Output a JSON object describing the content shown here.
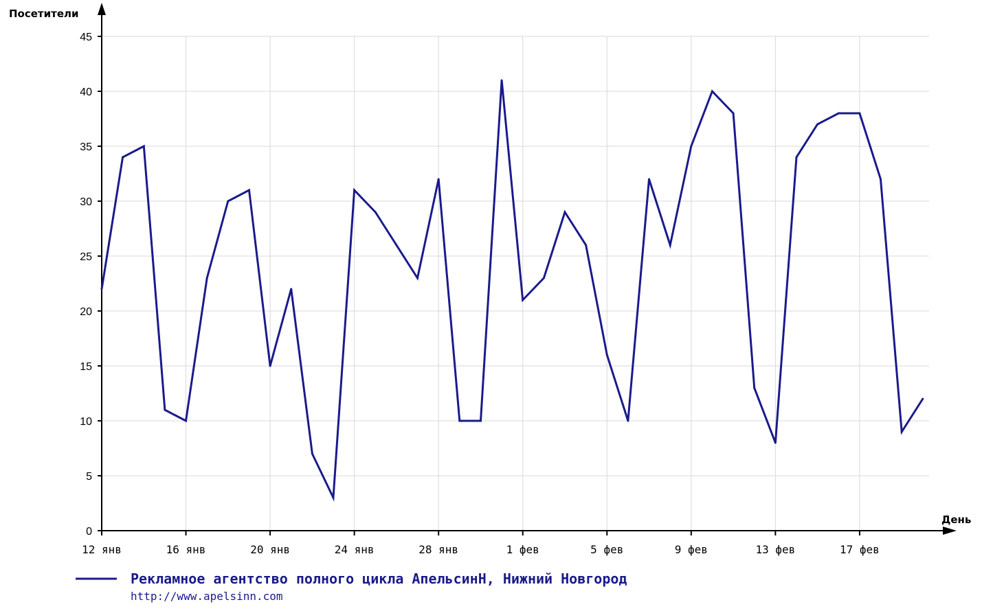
{
  "colors": {
    "series": "#1a1a8c",
    "grid": "#d9d9d9",
    "axis": "#000000"
  },
  "chart_data": {
    "type": "line",
    "ylabel": "Посетители",
    "xlabel": "День",
    "ylim": [
      0,
      45
    ],
    "yticks": [
      0,
      5,
      10,
      15,
      20,
      25,
      30,
      35,
      40,
      45
    ],
    "xlim": [
      0,
      39.3
    ],
    "xticks": [
      {
        "x": 0,
        "label": "12 янв"
      },
      {
        "x": 4,
        "label": "16 янв"
      },
      {
        "x": 8,
        "label": "20 янв"
      },
      {
        "x": 12,
        "label": "24 янв"
      },
      {
        "x": 16,
        "label": "28 янв"
      },
      {
        "x": 20,
        "label": "1 фев"
      },
      {
        "x": 24,
        "label": "5 фев"
      },
      {
        "x": 28,
        "label": "9 фев"
      },
      {
        "x": 32,
        "label": "13 фев"
      },
      {
        "x": 36,
        "label": "17 фев"
      }
    ],
    "grid": true,
    "series": [
      {
        "name": "Рекламное агентство полного цикла АпельсинН, Нижний Новгород",
        "values": [
          22,
          34,
          35,
          11,
          10,
          23,
          30,
          31,
          15,
          22,
          7,
          3,
          31,
          29,
          26,
          23,
          32,
          10,
          10,
          41,
          21,
          23,
          29,
          26,
          16,
          10,
          32,
          26,
          35,
          40,
          38,
          13,
          8,
          34,
          37,
          38,
          38,
          32,
          9,
          12
        ]
      }
    ]
  },
  "legend": {
    "title": "Рекламное агентство полного цикла АпельсинН, Нижний Новгород",
    "url": "http://www.apelsinn.com"
  }
}
